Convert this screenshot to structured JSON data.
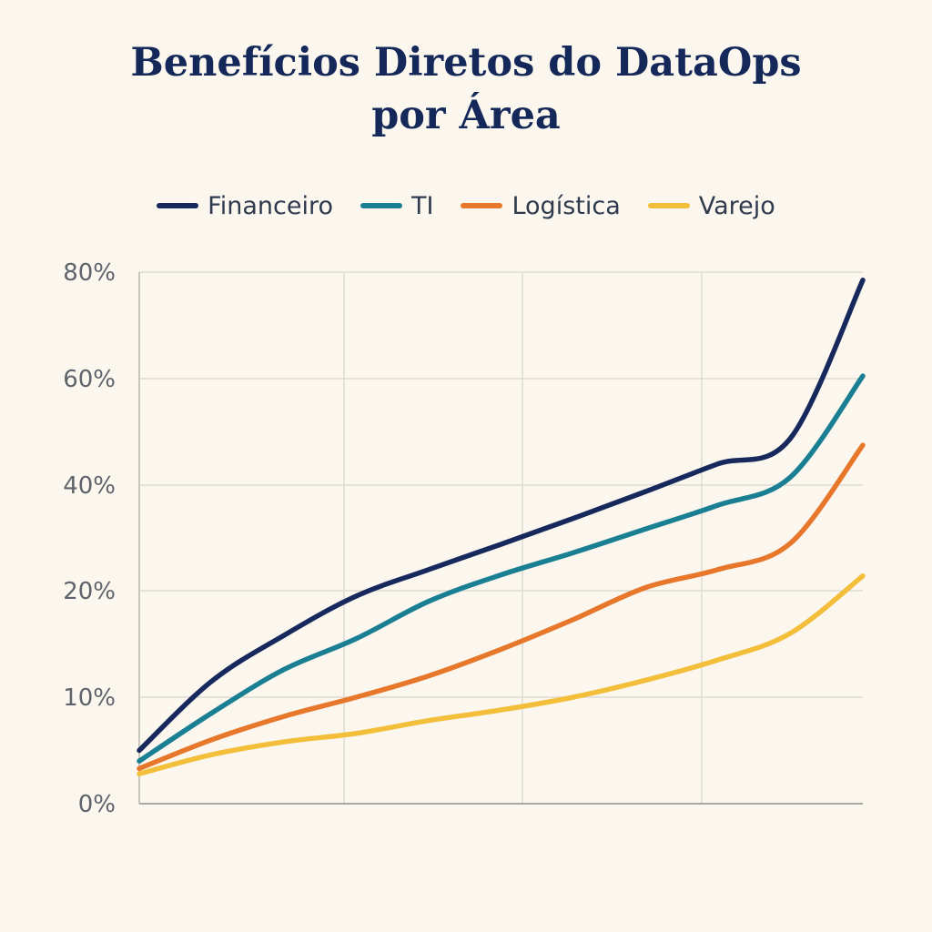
{
  "chart_data": {
    "type": "line",
    "title_lines": [
      "Benefícios Diretos do DataOps",
      "por Área"
    ],
    "xlabel": "",
    "ylabel": "",
    "x": [
      0,
      1,
      2,
      3,
      4,
      5,
      6,
      7,
      8,
      9,
      10
    ],
    "xlim": [
      0,
      10
    ],
    "y_ticks": [
      {
        "label": "0%",
        "value": 0
      },
      {
        "label": "10%",
        "value": 10
      },
      {
        "label": "20%",
        "value": 20
      },
      {
        "label": "40%",
        "value": 40
      },
      {
        "label": "60%",
        "value": 60
      },
      {
        "label": "80%",
        "value": 80
      }
    ],
    "ylim": [
      0,
      80
    ],
    "grid": true,
    "legend_position": "top",
    "series": [
      {
        "name": "Financeiro",
        "color": "#16285c",
        "values": [
          5,
          11.5,
          15.8,
          19.5,
          24,
          28.8,
          33.7,
          38.8,
          44,
          48.8,
          78.5
        ]
      },
      {
        "name": "TI",
        "color": "#1b7f93",
        "values": [
          4,
          8.5,
          12.6,
          15.5,
          19,
          23,
          27.2,
          31.7,
          36.2,
          41.5,
          60.5
        ]
      },
      {
        "name": "Logística",
        "color": "#e7772a",
        "values": [
          3.3,
          6,
          8.2,
          10,
          12,
          14.5,
          17.3,
          20.6,
          24,
          29,
          47.5
        ]
      },
      {
        "name": "Varejo",
        "color": "#f3be3a",
        "values": [
          2.8,
          4.6,
          5.8,
          6.6,
          7.8,
          8.8,
          10,
          11.6,
          13.5,
          16,
          22.8
        ]
      }
    ]
  }
}
